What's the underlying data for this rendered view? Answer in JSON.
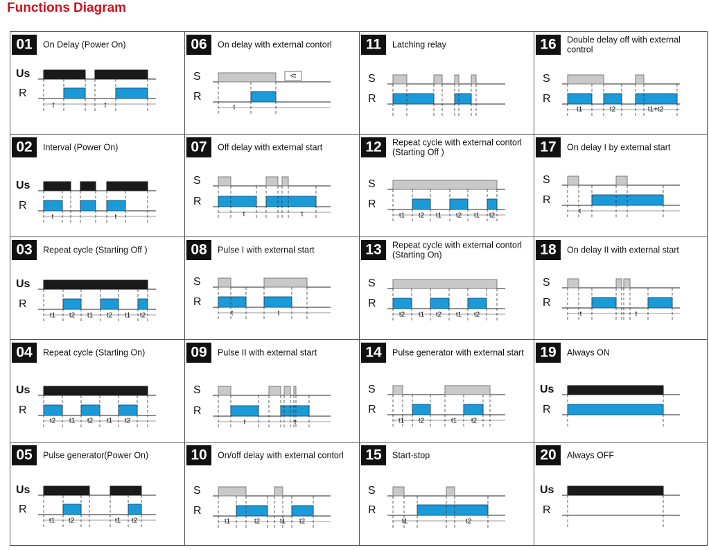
{
  "title": "Functions Diagram",
  "cells": [
    {
      "number": "01",
      "title": [
        "On Delay (Power On)"
      ],
      "signals": [
        "Us",
        "R"
      ],
      "timings": [
        "t",
        "t"
      ]
    },
    {
      "number": "02",
      "title": [
        "Interval (Power On)"
      ],
      "signals": [
        "Us",
        "R"
      ],
      "timings": [
        "t",
        "t"
      ]
    },
    {
      "number": "03",
      "title": [
        "Repeat cycle (Starting Off )"
      ],
      "signals": [
        "Us",
        "R"
      ],
      "timings": [
        "t1",
        "t2",
        "t1",
        "t2",
        "t1",
        "t2"
      ]
    },
    {
      "number": "04",
      "title": [
        "Repeat cycle (Starting On)"
      ],
      "signals": [
        "Us",
        "R"
      ],
      "timings": [
        "t2",
        "t1",
        "t2",
        "t1",
        "t2"
      ]
    },
    {
      "number": "05",
      "title": [
        "Pulse generator(Power On)"
      ],
      "signals": [
        "Us",
        "R"
      ],
      "timings": [
        "t1",
        "t2",
        "t1",
        "t2"
      ]
    },
    {
      "number": "06",
      "title": [
        "On delay with external contorl"
      ],
      "signals": [
        "S",
        "R"
      ],
      "timings": [
        "t"
      ],
      "note": "<t"
    },
    {
      "number": "07",
      "title": [
        "Off delay with external start"
      ],
      "signals": [
        "S",
        "R"
      ],
      "timings": [
        "t",
        "t"
      ]
    },
    {
      "number": "08",
      "title": [
        "Pulse I with external start"
      ],
      "signals": [
        "S",
        "R"
      ],
      "timings": [
        "t",
        "t"
      ]
    },
    {
      "number": "09",
      "title": [
        "Pulse II with external start"
      ],
      "signals": [
        "S",
        "R"
      ],
      "timings": [
        "t",
        "t"
      ]
    },
    {
      "number": "10",
      "title": [
        "On/off delay with external contorl"
      ],
      "signals": [
        "S",
        "R"
      ],
      "timings": [
        "t1",
        "t2",
        "t1",
        "t2"
      ]
    },
    {
      "number": "11",
      "title": [
        "Latching relay"
      ],
      "signals": [
        "S",
        "R"
      ],
      "timings": []
    },
    {
      "number": "12",
      "title": [
        "Repeat cycle with external contorl",
        "(Starting Off )"
      ],
      "signals": [
        "S",
        "R"
      ],
      "timings": [
        "t1",
        "t2",
        "t1",
        "t2",
        "t1",
        "t2"
      ]
    },
    {
      "number": "13",
      "title": [
        "Repeat cycle with external contorl",
        "(Starting On)"
      ],
      "signals": [
        "S",
        "R"
      ],
      "timings": [
        "t2",
        "t1",
        "t2",
        "t1",
        "t2"
      ]
    },
    {
      "number": "14",
      "title": [
        "Pulse generator with external start"
      ],
      "signals": [
        "S",
        "R"
      ],
      "timings": [
        "t1",
        "t2",
        "t1",
        "t2"
      ]
    },
    {
      "number": "15",
      "title": [
        "Start-stop"
      ],
      "signals": [
        "S",
        "R"
      ],
      "timings": [
        "t1",
        "t2"
      ]
    },
    {
      "number": "16",
      "title": [
        "Double delay off with external",
        "control"
      ],
      "signals": [
        "S",
        "R"
      ],
      "timings": [
        "t1",
        "t2",
        "t1+t2"
      ]
    },
    {
      "number": "17",
      "title": [
        "On delay I by external start"
      ],
      "signals": [
        "S",
        "R"
      ],
      "timings": [
        "t"
      ]
    },
    {
      "number": "18",
      "title": [
        "On delay II with external start"
      ],
      "signals": [
        "S",
        "R"
      ],
      "timings": [
        "t",
        "t"
      ]
    },
    {
      "number": "19",
      "title": [
        "Always  ON"
      ],
      "signals": [
        "Us",
        "R"
      ],
      "timings": []
    },
    {
      "number": "20",
      "title": [
        "Always  OFF"
      ],
      "signals": [
        "Us",
        "R"
      ],
      "timings": []
    }
  ]
}
